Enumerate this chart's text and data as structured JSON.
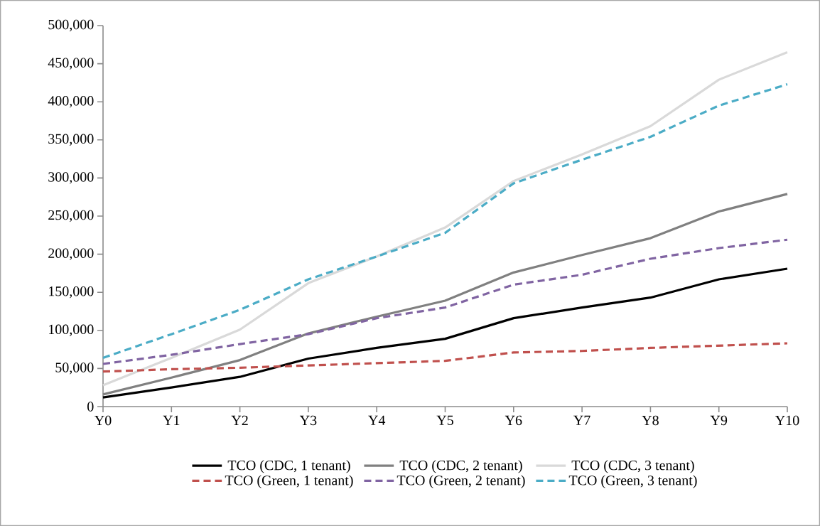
{
  "chart_data": {
    "type": "line",
    "categories": [
      "Y0",
      "Y1",
      "Y2",
      "Y3",
      "Y4",
      "Y5",
      "Y6",
      "Y7",
      "Y8",
      "Y9",
      "Y10"
    ],
    "series": [
      {
        "name": "TCO (CDC, 1 tenant)",
        "color": "#000000",
        "line_style": "solid",
        "values": [
          12000,
          25000,
          39000,
          63000,
          77000,
          89000,
          116000,
          130000,
          143000,
          167000,
          181000
        ]
      },
      {
        "name": "TCO (CDC, 2 tenant)",
        "color": "#808080",
        "line_style": "solid",
        "values": [
          16000,
          38000,
          61000,
          96000,
          118000,
          139000,
          176000,
          199000,
          221000,
          256000,
          279000
        ]
      },
      {
        "name": "TCO (CDC, 3 tenant)",
        "color": "#d9d9d9",
        "line_style": "solid",
        "values": [
          28000,
          64000,
          101000,
          162000,
          197000,
          235000,
          296000,
          331000,
          368000,
          429000,
          465000
        ]
      },
      {
        "name": "TCO (Green, 1 tenant)",
        "color": "#c0504d",
        "line_style": "dashed",
        "values": [
          46000,
          49000,
          51000,
          54000,
          57000,
          60000,
          71000,
          73000,
          77000,
          80000,
          83000
        ]
      },
      {
        "name": "TCO (Green, 2 tenant)",
        "color": "#8064a2",
        "line_style": "dashed",
        "values": [
          56000,
          68000,
          82000,
          95000,
          116000,
          130000,
          160000,
          173000,
          194000,
          208000,
          219000
        ]
      },
      {
        "name": "TCO (Green, 3 tenant)",
        "color": "#4bacc6",
        "line_style": "dashed",
        "values": [
          64000,
          95000,
          127000,
          167000,
          197000,
          228000,
          293000,
          324000,
          354000,
          395000,
          423000
        ]
      }
    ],
    "ylim": [
      0,
      500000
    ],
    "yticks": [
      0,
      {
        "value": 50000,
        "label": "50,000"
      },
      {
        "value": 100000,
        "label": "100,000"
      },
      {
        "value": 150000,
        "label": "150,000"
      },
      {
        "value": 200000,
        "label": "200,000"
      },
      {
        "value": 250000,
        "label": "250,000"
      },
      {
        "value": 300000,
        "label": "300,000"
      },
      {
        "value": 350000,
        "label": "350,000"
      },
      {
        "value": 400000,
        "label": "400,000"
      },
      {
        "value": 450000,
        "label": "450,000"
      },
      {
        "value": 500000,
        "label": "500,000"
      }
    ],
    "grid": false,
    "legend": "bottom",
    "marker": "none"
  }
}
